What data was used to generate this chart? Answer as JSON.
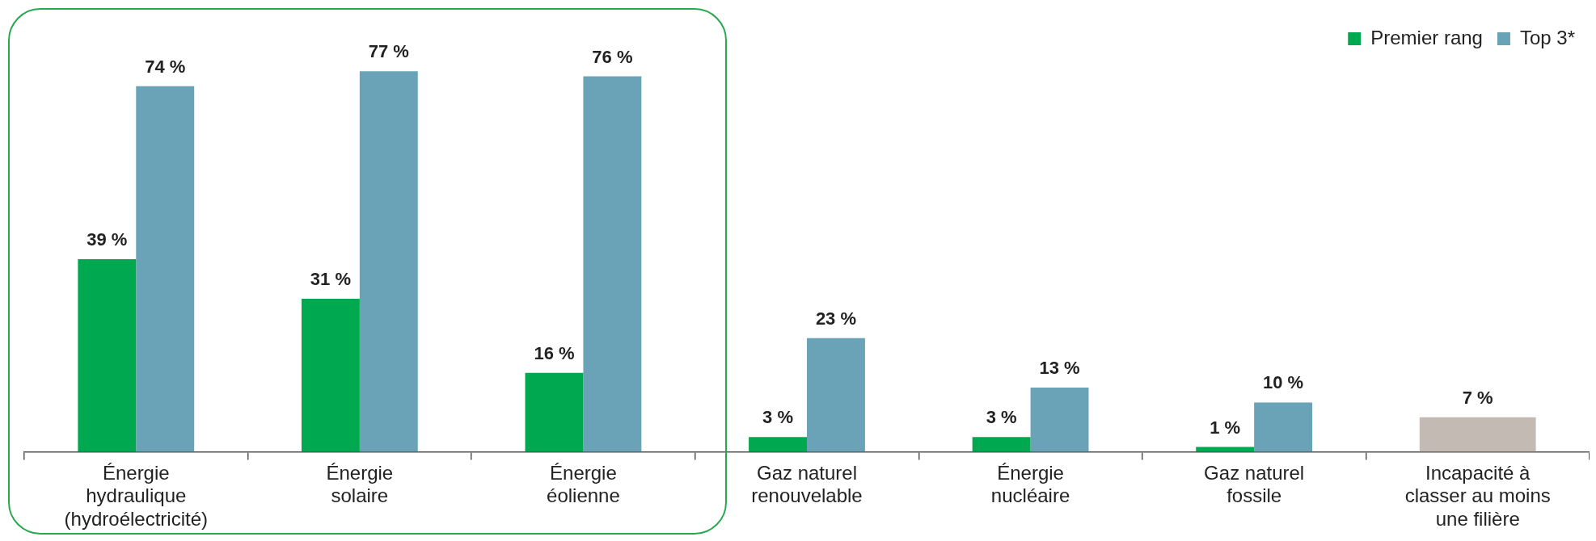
{
  "chart_data": {
    "type": "bar",
    "categories": [
      "Énergie\nhydraulique\n(hydroélectricité)",
      "Énergie\nsolaire",
      "Énergie\néolienne",
      "Gaz naturel\nrenouvelable",
      "Énergie\nnucléaire",
      "Gaz naturel\nfossile",
      "Incapacité à\nclasser au moins\nune filière"
    ],
    "series": [
      {
        "name": "Premier rang",
        "color": "#00a84f",
        "values": [
          39,
          31,
          16,
          3,
          3,
          1,
          null
        ],
        "value_labels": [
          "39 %",
          "31 %",
          "16 %",
          "3 %",
          "3 %",
          "1 %",
          null
        ]
      },
      {
        "name": "Top 3*",
        "color": "#6aa3b8",
        "colors": [
          "#6aa3b8",
          "#6aa3b8",
          "#6aa3b8",
          "#6aa3b8",
          "#6aa3b8",
          "#6aa3b8",
          "#c3bbb3"
        ],
        "values": [
          74,
          77,
          76,
          23,
          13,
          10,
          7
        ],
        "value_labels": [
          "74 %",
          "77 %",
          "76 %",
          "23 %",
          "13 %",
          "10 %",
          "7 %"
        ]
      }
    ],
    "legend": "top right"
  }
}
